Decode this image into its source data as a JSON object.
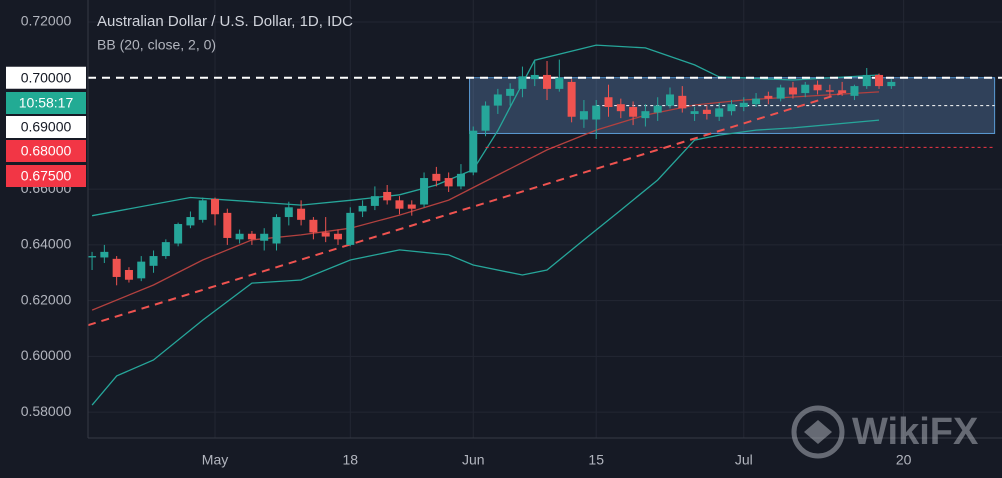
{
  "chart_data": {
    "type": "candlestick",
    "title": "Australian Dollar / U.S. Dollar, 1D, IDC",
    "subtitle": "BB (20, close, 2, 0)",
    "open": [
      0.6355,
      0.6355,
      0.635,
      0.631,
      0.628,
      0.6325,
      0.636,
      0.6405,
      0.647,
      0.649,
      0.6565,
      0.6515,
      0.642,
      0.644,
      0.6415,
      0.6405,
      0.65,
      0.653,
      0.649,
      0.6445,
      0.644,
      0.64,
      0.652,
      0.654,
      0.659,
      0.656,
      0.6545,
      0.6545,
      0.6655,
      0.664,
      0.661,
      0.666,
      0.681,
      0.69,
      0.6935,
      0.696,
      0.6995,
      0.701,
      0.696,
      0.6985,
      0.685,
      0.685,
      0.693,
      0.6905,
      0.6895,
      0.6855,
      0.6875,
      0.69,
      0.6935,
      0.687,
      0.6885,
      0.686,
      0.688,
      0.6895,
      0.6905,
      0.6935,
      0.6925,
      0.6965,
      0.6945,
      0.6975,
      0.6955,
      0.6955,
      0.6935,
      0.697,
      0.701,
      0.697
    ],
    "high": [
      0.6375,
      0.64,
      0.636,
      0.632,
      0.636,
      0.638,
      0.642,
      0.648,
      0.652,
      0.657,
      0.657,
      0.653,
      0.6455,
      0.645,
      0.646,
      0.651,
      0.6555,
      0.656,
      0.65,
      0.65,
      0.6455,
      0.6535,
      0.656,
      0.661,
      0.6615,
      0.6575,
      0.656,
      0.666,
      0.668,
      0.666,
      0.669,
      0.6825,
      0.6915,
      0.696,
      0.698,
      0.704,
      0.706,
      0.706,
      0.7065,
      0.6995,
      0.692,
      0.692,
      0.6975,
      0.6925,
      0.6915,
      0.6905,
      0.693,
      0.6965,
      0.697,
      0.6895,
      0.69,
      0.691,
      0.692,
      0.693,
      0.6945,
      0.695,
      0.6975,
      0.6985,
      0.6985,
      0.699,
      0.6975,
      0.6985,
      0.6975,
      0.7035,
      0.7015,
      0.6995
    ],
    "low": [
      0.631,
      0.6335,
      0.6255,
      0.6265,
      0.627,
      0.63,
      0.635,
      0.6395,
      0.646,
      0.648,
      0.647,
      0.64,
      0.6405,
      0.64,
      0.638,
      0.638,
      0.647,
      0.647,
      0.642,
      0.641,
      0.64,
      0.6395,
      0.65,
      0.6525,
      0.6545,
      0.651,
      0.6505,
      0.6535,
      0.661,
      0.659,
      0.66,
      0.665,
      0.679,
      0.687,
      0.69,
      0.693,
      0.697,
      0.692,
      0.695,
      0.684,
      0.682,
      0.678,
      0.686,
      0.6855,
      0.683,
      0.6825,
      0.6845,
      0.689,
      0.6875,
      0.6845,
      0.685,
      0.6845,
      0.6865,
      0.688,
      0.6895,
      0.6905,
      0.6915,
      0.6925,
      0.693,
      0.694,
      0.693,
      0.6935,
      0.692,
      0.696,
      0.696,
      0.696
    ],
    "close": [
      0.636,
      0.6375,
      0.6285,
      0.6275,
      0.634,
      0.636,
      0.641,
      0.6475,
      0.65,
      0.656,
      0.651,
      0.6425,
      0.644,
      0.642,
      0.644,
      0.65,
      0.6535,
      0.649,
      0.6445,
      0.643,
      0.642,
      0.6515,
      0.654,
      0.6575,
      0.656,
      0.653,
      0.653,
      0.664,
      0.663,
      0.661,
      0.6655,
      0.681,
      0.69,
      0.694,
      0.696,
      0.7005,
      0.701,
      0.696,
      0.7,
      0.686,
      0.688,
      0.69,
      0.6895,
      0.688,
      0.686,
      0.688,
      0.69,
      0.694,
      0.689,
      0.688,
      0.687,
      0.689,
      0.6905,
      0.691,
      0.6925,
      0.6925,
      0.6965,
      0.694,
      0.6975,
      0.6955,
      0.695,
      0.6945,
      0.697,
      0.701,
      0.697,
      0.6985
    ],
    "up_color": "#26a69a",
    "down_color": "#ef5350",
    "bollinger": {
      "color": "#26a69a",
      "middle_color": "#b2413f",
      "upper": {
        "x": [
          0,
          8,
          13,
          17,
          21,
          25,
          28,
          31,
          33,
          36,
          41,
          45,
          49,
          51,
          57,
          64
        ],
        "values": [
          0.6505,
          0.657,
          0.6555,
          0.6543,
          0.656,
          0.658,
          0.6615,
          0.667,
          0.681,
          0.7063,
          0.7117,
          0.7107,
          0.7046,
          0.7003,
          0.6992,
          0.701
        ]
      },
      "middle": {
        "x": [
          0,
          5,
          9,
          13,
          17,
          21,
          25,
          29,
          33,
          37,
          41,
          45,
          49,
          53,
          57,
          64
        ],
        "values": [
          0.6166,
          0.6256,
          0.6346,
          0.6418,
          0.6436,
          0.646,
          0.6507,
          0.6561,
          0.6651,
          0.6741,
          0.6812,
          0.6866,
          0.6902,
          0.692,
          0.6931,
          0.6949
        ]
      },
      "lower": {
        "x": [
          0,
          2,
          5,
          9,
          13,
          17,
          21,
          25,
          29,
          31,
          35,
          37,
          40,
          43,
          46,
          49,
          51,
          54,
          57,
          64
        ],
        "values": [
          0.5825,
          0.593,
          0.5987,
          0.613,
          0.6263,
          0.6274,
          0.6346,
          0.6382,
          0.6364,
          0.6328,
          0.6292,
          0.631,
          0.6418,
          0.6525,
          0.6633,
          0.6776,
          0.6794,
          0.6812,
          0.682,
          0.6848
        ]
      }
    },
    "trend_line": {
      "x": [
        -0.33,
        61
      ],
      "values": [
        0.6112,
        0.6945
      ],
      "color": "#ef5350"
    },
    "levels": [
      {
        "value": 0.7,
        "label": "0.70000",
        "color": "#ffffff",
        "from": -0.33
      },
      {
        "value": 0.69,
        "label": "0.69000",
        "color": "#ffffff",
        "from": 41
      },
      {
        "value": 0.68,
        "label": "0.68000",
        "color": "#f23645"
      },
      {
        "value": 0.675,
        "label": "0.67500",
        "color": "#f23645",
        "from": 32
      }
    ],
    "box_x": [
      30.7,
      73.4
    ],
    "countdown": "10:58:17",
    "xlim": [
      -0.33,
      74
    ],
    "xticks": [
      {
        "value": 10,
        "label": "May"
      },
      {
        "value": 21,
        "label": "18"
      },
      {
        "value": 31,
        "label": "Jun"
      },
      {
        "value": 41,
        "label": "15"
      },
      {
        "value": 53,
        "label": "Jul"
      },
      {
        "value": 66,
        "label": "20"
      }
    ],
    "ylim": [
      0.5707,
      0.7279
    ],
    "yticks": [
      {
        "value": 0.72,
        "label": "0.72000"
      },
      {
        "value": 0.66,
        "label": "0.66000"
      },
      {
        "value": 0.64,
        "label": "0.64000"
      },
      {
        "value": 0.62,
        "label": "0.62000"
      },
      {
        "value": 0.6,
        "label": "0.60000"
      },
      {
        "value": 0.58,
        "label": "0.58000"
      }
    ],
    "grid": true,
    "watermark": "WikiFX"
  }
}
